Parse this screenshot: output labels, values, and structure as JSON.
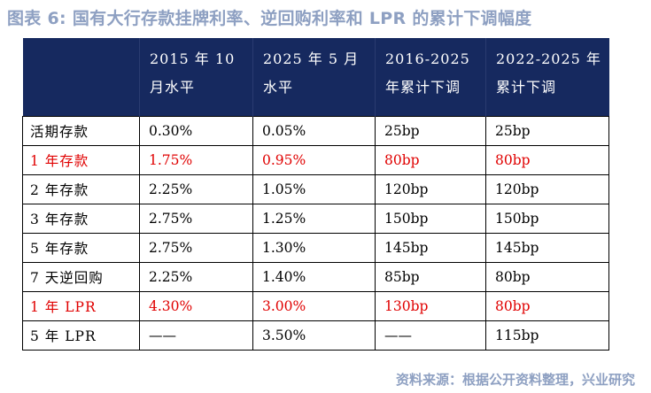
{
  "title": "图表 6: 国有大行存款挂牌利率、逆回购利率和 LPR 的累计下调幅度",
  "table": {
    "headers": [
      "",
      "2015 年 10\n月水平",
      "2025 年 5 月\n水平",
      "2016-2025\n年累计下调",
      "2022-2025 年\n累计下调"
    ],
    "rows": [
      {
        "cells": [
          "活期存款",
          "0.30%",
          "0.05%",
          "25bp",
          "25bp"
        ],
        "highlight": false
      },
      {
        "cells": [
          "1 年存款",
          "1.75%",
          "0.95%",
          "80bp",
          "80bp"
        ],
        "highlight": true
      },
      {
        "cells": [
          "2 年存款",
          "2.25%",
          "1.05%",
          "120bp",
          "120bp"
        ],
        "highlight": false
      },
      {
        "cells": [
          "3 年存款",
          "2.75%",
          "1.25%",
          "150bp",
          "150bp"
        ],
        "highlight": false
      },
      {
        "cells": [
          "5 年存款",
          "2.75%",
          "1.30%",
          "145bp",
          "145bp"
        ],
        "highlight": false
      },
      {
        "cells": [
          "7 天逆回购",
          "2.25%",
          "1.40%",
          "85bp",
          "80bp"
        ],
        "highlight": false
      },
      {
        "cells": [
          "1 年 LPR",
          "4.30%",
          "3.00%",
          "130bp",
          "80bp"
        ],
        "highlight": true
      },
      {
        "cells": [
          "5 年 LPR",
          "——",
          "3.50%",
          "——",
          "115bp"
        ],
        "highlight": false
      }
    ]
  },
  "colors": {
    "header_bg": "#16295f",
    "title": "#8ea0c2",
    "highlight_text": "#e00000"
  },
  "source": "资料来源：根据公开资料整理，兴业研究"
}
